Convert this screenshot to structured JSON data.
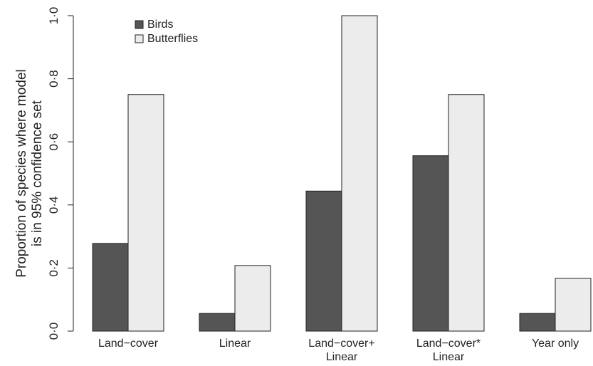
{
  "chart_data": {
    "type": "bar",
    "categories": [
      [
        "Land−cover"
      ],
      [
        "Linear"
      ],
      [
        "Land−cover+",
        "Linear"
      ],
      [
        "Land−cover*",
        "Linear"
      ],
      [
        "Year only"
      ]
    ],
    "series": [
      {
        "name": "Birds",
        "color": "#555555",
        "values": [
          0.278,
          0.056,
          0.444,
          0.556,
          0.056
        ]
      },
      {
        "name": "Butterflies",
        "color": "#ececec",
        "values": [
          0.75,
          0.208,
          1.0,
          0.75,
          0.167
        ]
      }
    ],
    "ylabel": [
      "Proportion of species where model",
      "is in 95% confidence set"
    ],
    "yticks": [
      {
        "value": 0.0,
        "label": "0·0"
      },
      {
        "value": 0.2,
        "label": "0·2"
      },
      {
        "value": 0.4,
        "label": "0·4"
      },
      {
        "value": 0.6,
        "label": "0·6"
      },
      {
        "value": 0.8,
        "label": "0·8"
      },
      {
        "value": 1.0,
        "label": "1·0"
      }
    ],
    "ylim": [
      0,
      1
    ],
    "legend_position": "top-left",
    "grid": false
  }
}
